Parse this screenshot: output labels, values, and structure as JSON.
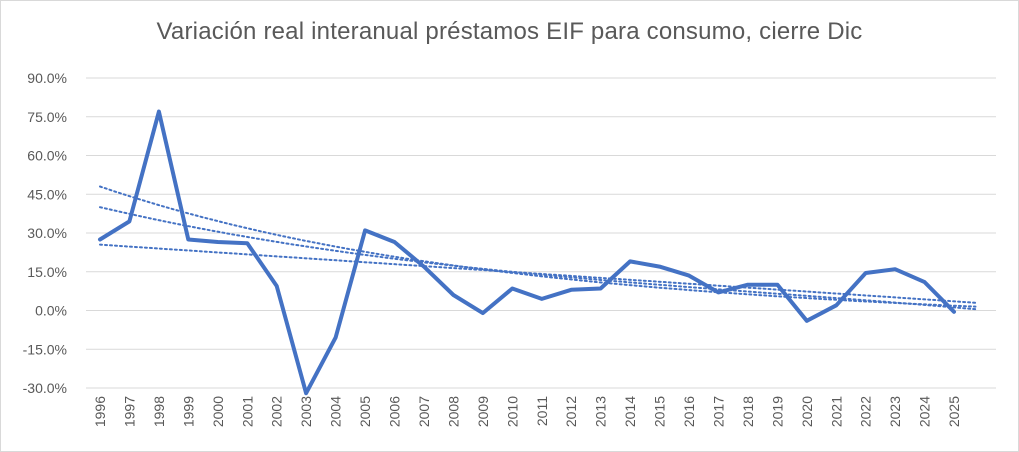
{
  "chart_data": {
    "type": "line",
    "title": "Variación real interanual préstamos EIF para consumo, cierre Dic",
    "xlabel": "",
    "ylabel": "",
    "categories": [
      "1996",
      "1997",
      "1998",
      "1999",
      "2000",
      "2001",
      "2002",
      "2003",
      "2004",
      "2005",
      "2006",
      "2007",
      "2008",
      "2009",
      "2010",
      "2011",
      "2012",
      "2013",
      "2014",
      "2015",
      "2016",
      "2017",
      "2018",
      "2019",
      "2020",
      "2021",
      "2022",
      "2023",
      "2024",
      "2025"
    ],
    "series": [
      {
        "values": [
          27.5,
          34.5,
          77.0,
          27.5,
          26.5,
          26.0,
          9.5,
          -32.0,
          -10.5,
          31.0,
          26.5,
          17.0,
          6.0,
          -1.0,
          8.5,
          4.5,
          8.0,
          8.5,
          19.0,
          17.0,
          13.5,
          7.0,
          10.0,
          10.0,
          -4.0,
          2.0,
          14.5,
          16.0,
          11.0,
          -0.5
        ],
        "color": "#4472c4",
        "style": "solid"
      }
    ],
    "trendlines": [
      {
        "kind": "linear",
        "start": 25.5,
        "end": 3.0,
        "color": "#4472c4",
        "style": "dotted"
      },
      {
        "kind": "exponential-decay",
        "start": 48.0,
        "end": 1.5,
        "color": "#4472c4",
        "style": "dotted"
      },
      {
        "kind": "polynomial",
        "start": 40.0,
        "end": 0.5,
        "color": "#4472c4",
        "style": "dotted"
      }
    ],
    "y_ticks": [
      "90.0%",
      "75.0%",
      "60.0%",
      "45.0%",
      "30.0%",
      "15.0%",
      "0.0%",
      "-15.0%",
      "-30.0%"
    ],
    "ylim": [
      -30,
      90
    ],
    "grid": true,
    "legend": "none"
  }
}
